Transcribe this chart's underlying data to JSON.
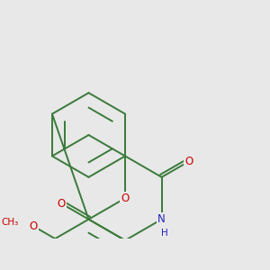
{
  "bg_color": "#e8e8e8",
  "bond_color": "#3a7a3a",
  "bond_width": 1.4,
  "atom_colors": {
    "O": "#cc0000",
    "N": "#2222bb"
  },
  "font_size": 8.5,
  "figsize": [
    3.0,
    3.0
  ],
  "dpi": 100
}
